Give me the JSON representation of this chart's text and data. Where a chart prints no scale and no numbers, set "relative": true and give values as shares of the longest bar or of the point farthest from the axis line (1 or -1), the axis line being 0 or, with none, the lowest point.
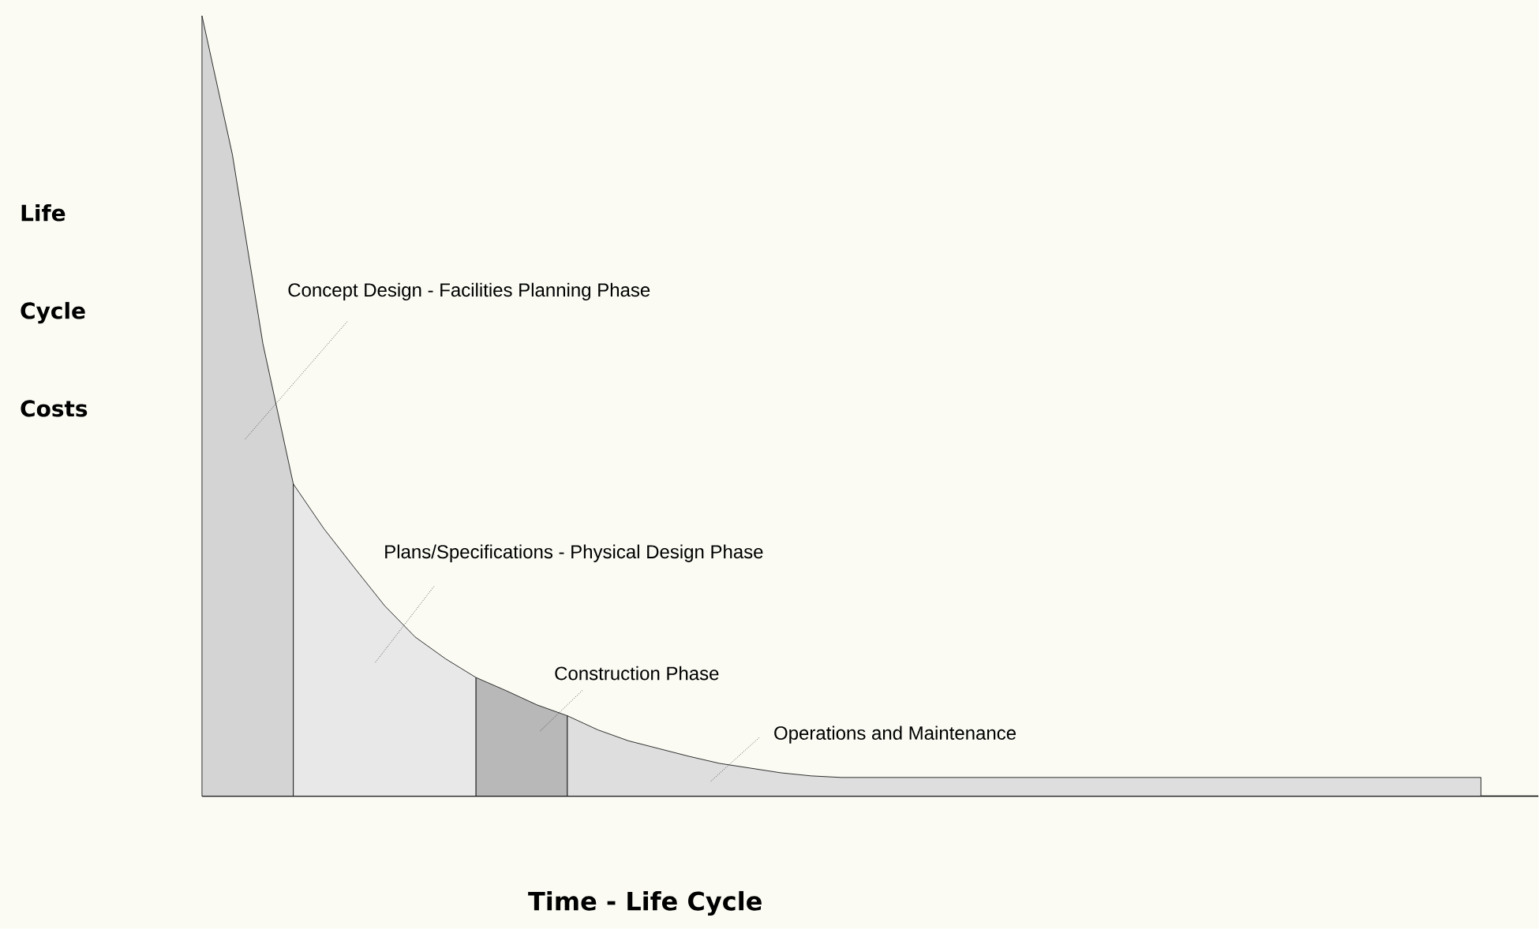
{
  "chart_data": {
    "type": "area",
    "relative": true,
    "xlabel": "Time - Life Cycle",
    "ylabel": "Life Cycle Costs",
    "categories": [
      null,
      null,
      null,
      null,
      null,
      null,
      null,
      null,
      null,
      null,
      null,
      null,
      null,
      null,
      null,
      null,
      null,
      null,
      null,
      null,
      null,
      null,
      null,
      null,
      null,
      null,
      null,
      null,
      null,
      null,
      null,
      null,
      null,
      null,
      null,
      null,
      null,
      null,
      null,
      null,
      null,
      null,
      null
    ],
    "series": [
      {
        "name": "Concept Design - Facilities Planning Phase",
        "color": "#d4d4d4",
        "values": [
          1.0,
          0.822,
          0.58,
          0.4,
          null,
          null,
          null,
          null,
          null,
          null,
          null,
          null,
          null,
          null,
          null,
          null,
          null,
          null,
          null,
          null,
          null,
          null,
          null,
          null,
          null,
          null,
          null,
          null,
          null,
          null,
          null,
          null,
          null,
          null,
          null,
          null,
          null,
          null,
          null,
          null,
          null,
          null,
          null
        ]
      },
      {
        "name": "Plans/Specifications - Physical Design Phase",
        "color": "#e8e8e8",
        "values": [
          null,
          null,
          null,
          0.4,
          0.343,
          0.293,
          0.244,
          0.204,
          0.176,
          0.152,
          null,
          null,
          null,
          null,
          null,
          null,
          null,
          null,
          null,
          null,
          null,
          null,
          null,
          null,
          null,
          null,
          null,
          null,
          null,
          null,
          null,
          null,
          null,
          null,
          null,
          null,
          null,
          null,
          null,
          null,
          null,
          null,
          null
        ]
      },
      {
        "name": "Construction Phase",
        "color": "#b8b8b8",
        "values": [
          null,
          null,
          null,
          null,
          null,
          null,
          null,
          null,
          null,
          0.152,
          0.135,
          0.117,
          0.103,
          null,
          null,
          null,
          null,
          null,
          null,
          null,
          null,
          null,
          null,
          null,
          null,
          null,
          null,
          null,
          null,
          null,
          null,
          null,
          null,
          null,
          null,
          null,
          null,
          null,
          null,
          null,
          null,
          null,
          null
        ]
      },
      {
        "name": "Operations and Maintenance",
        "color": "#dedede",
        "values": [
          null,
          null,
          null,
          null,
          null,
          null,
          null,
          null,
          null,
          null,
          null,
          null,
          0.103,
          0.085,
          0.071,
          0.061,
          0.051,
          0.042,
          0.036,
          0.03,
          0.026,
          0.024,
          0.024,
          0.024,
          0.024,
          0.024,
          0.024,
          0.024,
          0.024,
          0.024,
          0.024,
          0.024,
          0.024,
          0.024,
          0.024,
          0.024,
          0.024,
          0.024,
          0.024,
          0.024,
          0.024,
          0.024,
          0.024
        ]
      }
    ]
  }
}
